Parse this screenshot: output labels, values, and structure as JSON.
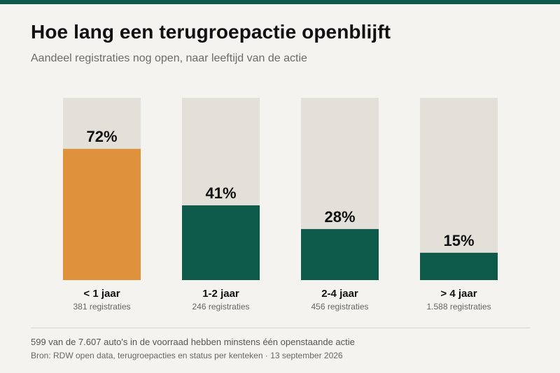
{
  "header": {
    "title": "Hoe lang een terugroepactie openblijft",
    "subtitle": "Aandeel registraties nog open, naar leeftijd van de actie"
  },
  "colors": {
    "top_bar": "#0d5a4a",
    "highlight": "#e0913c",
    "bar": "#0d5a4a",
    "track": "#e2e0d8",
    "background": "#f4f3ef"
  },
  "chart_data": {
    "type": "bar",
    "categories": [
      "< 1 jaar",
      "1-2 jaar",
      "2-4 jaar",
      "> 4 jaar"
    ],
    "values": [
      72,
      41,
      28,
      15
    ],
    "value_labels": [
      "72%",
      "41%",
      "28%",
      "15%"
    ],
    "counts": [
      "381 registraties",
      "246 registraties",
      "456 registraties",
      "1.588 registraties"
    ],
    "highlight_index": 0,
    "ylim": [
      0,
      100
    ],
    "title": "Hoe lang een terugroepactie openblijft",
    "subtitle": "Aandeel registraties nog open, naar leeftijd van de actie",
    "xlabel": "",
    "ylabel": "",
    "grid": false,
    "legend": "none"
  },
  "footer": {
    "note": "599 van de 7.607 auto's in de voorraad hebben minstens één openstaande actie",
    "source": "Bron: RDW open data, terugroepacties en status per kenteken  ·  13 september 2026"
  }
}
